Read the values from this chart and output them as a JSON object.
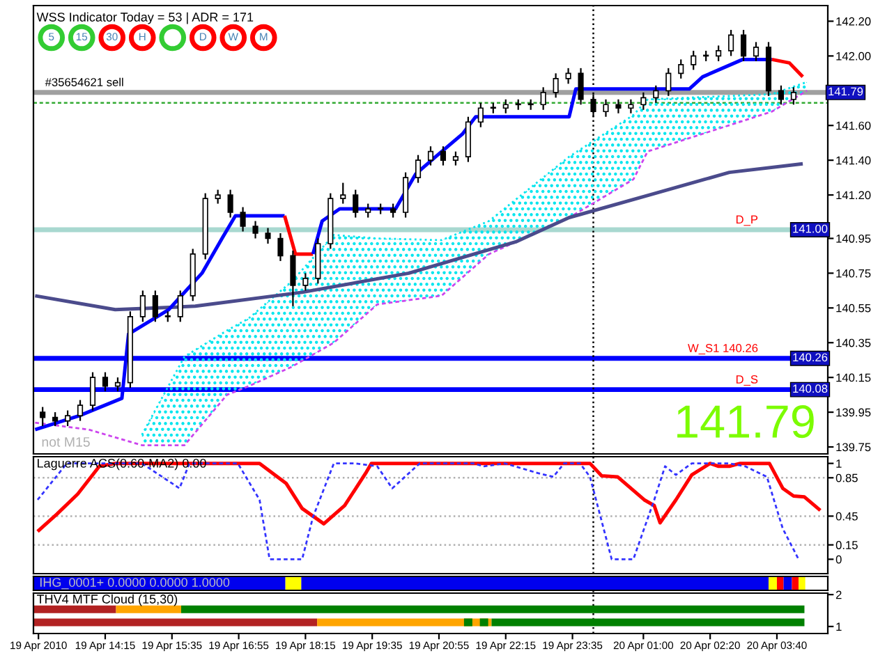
{
  "chart_data": [
    {
      "type": "candlestick",
      "title": "WSS Indicator Today = 53 | ADR = 171",
      "color": "#000000",
      "x": [
        "2010-04-19T13:00",
        "2010-04-19T13:15",
        "2010-04-19T13:30",
        "2010-04-19T13:45",
        "2010-04-19T14:00",
        "2010-04-19T14:15",
        "2010-04-19T14:30",
        "2010-04-19T14:45",
        "2010-04-19T15:00",
        "2010-04-19T15:15",
        "2010-04-19T15:30",
        "2010-04-19T15:45",
        "2010-04-19T16:00",
        "2010-04-19T16:15",
        "2010-04-19T16:30",
        "2010-04-19T16:45",
        "2010-04-19T17:00",
        "2010-04-19T17:15",
        "2010-04-19T17:30",
        "2010-04-19T17:45",
        "2010-04-19T18:00",
        "2010-04-19T18:15",
        "2010-04-19T18:30",
        "2010-04-19T18:45",
        "2010-04-19T19:00",
        "2010-04-19T19:15",
        "2010-04-19T19:30",
        "2010-04-19T19:45",
        "2010-04-19T20:00",
        "2010-04-19T20:15",
        "2010-04-19T20:30",
        "2010-04-19T20:45",
        "2010-04-19T21:00",
        "2010-04-19T21:15",
        "2010-04-19T21:30",
        "2010-04-19T21:45",
        "2010-04-19T22:00",
        "2010-04-19T22:15",
        "2010-04-19T22:30",
        "2010-04-19T22:45",
        "2010-04-19T23:00",
        "2010-04-19T23:15",
        "2010-04-19T23:30",
        "2010-04-19T23:45",
        "2010-04-20T00:00",
        "2010-04-20T00:15",
        "2010-04-20T00:30",
        "2010-04-20T00:45",
        "2010-04-20T01:00",
        "2010-04-20T01:15",
        "2010-04-20T01:30",
        "2010-04-20T01:45",
        "2010-04-20T02:00",
        "2010-04-20T02:15",
        "2010-04-20T02:30",
        "2010-04-20T02:45",
        "2010-04-20T03:00",
        "2010-04-20T03:15",
        "2010-04-20T03:30",
        "2010-04-20T03:45",
        "2010-04-20T04:00"
      ],
      "ohlc": [
        [
          139.95,
          139.98,
          139.87,
          139.92
        ],
        [
          139.92,
          139.95,
          139.87,
          139.9
        ],
        [
          139.9,
          139.96,
          139.87,
          139.93
        ],
        [
          139.93,
          140.02,
          139.9,
          139.99
        ],
        [
          139.99,
          140.18,
          139.96,
          140.15
        ],
        [
          140.15,
          140.18,
          140.07,
          140.1
        ],
        [
          140.1,
          140.15,
          140.07,
          140.12
        ],
        [
          140.12,
          140.53,
          140.09,
          140.5
        ],
        [
          140.5,
          140.65,
          140.47,
          140.62
        ],
        [
          140.62,
          140.65,
          140.47,
          140.5
        ],
        [
          140.5,
          140.53,
          140.47,
          140.5
        ],
        [
          140.5,
          140.65,
          140.47,
          140.62
        ],
        [
          140.62,
          140.89,
          140.59,
          140.86
        ],
        [
          140.86,
          141.21,
          140.83,
          141.18
        ],
        [
          141.18,
          141.23,
          141.15,
          141.2
        ],
        [
          141.2,
          141.23,
          141.07,
          141.1
        ],
        [
          141.1,
          141.13,
          140.99,
          141.02
        ],
        [
          141.02,
          141.05,
          140.95,
          140.98
        ],
        [
          140.98,
          141.01,
          140.92,
          140.95
        ],
        [
          140.95,
          140.98,
          140.82,
          140.85
        ],
        [
          140.85,
          140.88,
          140.56,
          140.68
        ],
        [
          140.68,
          140.75,
          140.65,
          140.72
        ],
        [
          140.72,
          140.95,
          140.69,
          140.92
        ],
        [
          140.92,
          141.21,
          140.89,
          141.18
        ],
        [
          141.18,
          141.27,
          141.15,
          141.2
        ],
        [
          141.2,
          141.23,
          141.07,
          141.1
        ],
        [
          141.1,
          141.15,
          141.07,
          141.12
        ],
        [
          141.12,
          141.15,
          141.09,
          141.12
        ],
        [
          141.12,
          141.15,
          141.07,
          141.1
        ],
        [
          141.1,
          141.33,
          141.07,
          141.3
        ],
        [
          141.3,
          141.43,
          141.27,
          141.4
        ],
        [
          141.4,
          141.48,
          141.37,
          141.45
        ],
        [
          141.45,
          141.48,
          141.37,
          141.4
        ],
        [
          141.4,
          141.45,
          141.37,
          141.42
        ],
        [
          141.42,
          141.65,
          141.39,
          141.62
        ],
        [
          141.62,
          141.73,
          141.59,
          141.7
        ],
        [
          141.7,
          141.73,
          141.67,
          141.7
        ],
        [
          141.7,
          141.75,
          141.67,
          141.72
        ],
        [
          141.72,
          141.75,
          141.69,
          141.72
        ],
        [
          141.72,
          141.75,
          141.69,
          141.72
        ],
        [
          141.72,
          141.82,
          141.69,
          141.79
        ],
        [
          141.79,
          141.9,
          141.76,
          141.87
        ],
        [
          141.87,
          141.93,
          141.84,
          141.9
        ],
        [
          141.9,
          141.93,
          141.72,
          141.75
        ],
        [
          141.75,
          141.78,
          141.65,
          141.68
        ],
        [
          141.68,
          141.75,
          141.65,
          141.72
        ],
        [
          141.72,
          141.75,
          141.67,
          141.7
        ],
        [
          141.7,
          141.75,
          141.67,
          141.72
        ],
        [
          141.72,
          141.79,
          141.69,
          141.76
        ],
        [
          141.76,
          141.83,
          141.73,
          141.8
        ],
        [
          141.8,
          141.93,
          141.77,
          141.9
        ],
        [
          141.9,
          141.98,
          141.87,
          141.95
        ],
        [
          141.95,
          142.03,
          141.92,
          142.0
        ],
        [
          142.0,
          142.03,
          141.97,
          142.0
        ],
        [
          142.0,
          142.06,
          141.97,
          142.03
        ],
        [
          142.03,
          142.15,
          142.0,
          142.12
        ],
        [
          142.12,
          142.15,
          141.97,
          142.0
        ],
        [
          142.0,
          142.08,
          141.97,
          142.05
        ],
        [
          142.05,
          142.08,
          141.77,
          141.8
        ],
        [
          141.8,
          141.83,
          141.72,
          141.75
        ],
        [
          141.75,
          141.82,
          141.72,
          141.79
        ]
      ],
      "series": [
        {
          "type": "line",
          "color": "#00e5ee",
          "line_style": "dotted",
          "x": [
            "2010-04-19T14:59",
            "2010-04-19T15:50",
            "2010-04-19T16:41",
            "2010-04-19T17:07",
            "2010-04-19T17:58",
            "2010-04-19T18:49",
            "2010-04-19T19:41",
            "2010-04-19T20:58",
            "2010-04-19T21:55",
            "2010-04-19T23:31",
            "2010-04-20T00:48",
            "2010-04-20T01:05",
            "2010-04-20T03:34",
            "2010-04-20T04:16"
          ],
          "values": [
            139.82,
            140.27,
            140.42,
            140.49,
            140.7,
            140.97,
            140.95,
            140.94,
            141.05,
            141.42,
            141.66,
            141.75,
            141.78,
            141.85
          ],
          "lower": [
            139.76,
            139.76,
            140.05,
            140.1,
            140.21,
            140.35,
            140.57,
            140.62,
            140.86,
            141.07,
            141.29,
            141.45,
            141.68,
            141.8
          ],
          "upper": [
            139.82,
            140.27,
            140.42,
            140.49,
            140.7,
            140.97,
            140.95,
            140.94,
            141.05,
            141.42,
            141.66,
            141.75,
            141.78,
            141.85
          ]
        },
        {
          "type": "line",
          "color": "#cc44ee",
          "line_style": "dashed",
          "x": [
            "2010-04-19T12:51",
            "2010-04-19T13:55",
            "2010-04-19T14:59",
            "2010-04-19T15:50",
            "2010-04-19T16:41",
            "2010-04-19T17:07",
            "2010-04-19T17:58",
            "2010-04-19T18:49",
            "2010-04-19T19:41",
            "2010-04-19T20:58",
            "2010-04-19T21:55",
            "2010-04-19T23:31",
            "2010-04-20T00:48",
            "2010-04-20T01:05",
            "2010-04-20T03:34",
            "2010-04-20T04:16"
          ],
          "values": [
            139.89,
            139.85,
            139.76,
            139.76,
            140.05,
            140.1,
            140.21,
            140.35,
            140.57,
            140.62,
            140.86,
            141.07,
            141.29,
            141.45,
            141.68,
            141.8
          ]
        },
        {
          "type": "line",
          "color": "#4b4b8c",
          "x": [
            "2010-04-19T12:51",
            "2010-04-19T14:27",
            "2010-04-19T16:03",
            "2010-04-19T18:11",
            "2010-04-19T20:19",
            "2010-04-19T22:27",
            "2010-04-19T23:31",
            "2010-04-20T01:07",
            "2010-04-20T02:43",
            "2010-04-20T04:11"
          ],
          "values": [
            140.62,
            140.54,
            140.56,
            140.64,
            140.75,
            140.93,
            141.07,
            141.2,
            141.33,
            141.38
          ]
        },
        {
          "type": "line",
          "color": "#0000ff",
          "x": [
            "2010-04-19T12:51",
            "2010-04-19T13:44",
            "2010-04-19T14:35",
            "2010-04-19T14:43",
            "2010-04-19T15:31",
            "2010-04-19T16:11",
            "2010-04-19T16:35",
            "2010-04-19T16:51",
            "2010-04-19T17:50"
          ],
          "values": [
            139.85,
            139.93,
            140.03,
            140.4,
            140.54,
            140.75,
            140.95,
            141.08,
            141.08
          ]
        },
        {
          "type": "line",
          "color": "#ff0000",
          "x": [
            "2010-04-19T17:50",
            "2010-04-19T18:03",
            "2010-04-19T18:24"
          ],
          "values": [
            141.08,
            140.86,
            140.86
          ]
        },
        {
          "type": "line",
          "color": "#0000ff",
          "x": [
            "2010-04-19T18:24",
            "2010-04-19T18:35",
            "2010-04-19T18:56",
            "2010-04-19T20:03",
            "2010-04-19T20:27",
            "2010-04-19T20:51",
            "2010-04-19T21:23",
            "2010-04-19T21:39",
            "2010-04-19T23:31",
            "2010-04-19T23:39",
            "2010-04-20T01:55",
            "2010-04-20T02:11",
            "2010-04-20T02:59",
            "2010-04-20T03:34"
          ],
          "values": [
            140.86,
            141.05,
            141.12,
            141.12,
            141.32,
            141.42,
            141.55,
            141.65,
            141.65,
            141.81,
            141.81,
            141.88,
            141.98,
            141.98
          ]
        },
        {
          "type": "line",
          "color": "#ff0000",
          "x": [
            "2010-04-20T03:34",
            "2010-04-20T03:55",
            "2010-04-20T04:11"
          ],
          "values": [
            141.98,
            141.96,
            141.88
          ]
        }
      ],
      "ref_lines": [
        {
          "axis": "y",
          "value": 141.79,
          "label": "#35654621 sell",
          "color": "#a0a0a0"
        },
        {
          "axis": "y",
          "value": 141.73,
          "color": "#33aa33",
          "line_style": "dashed"
        },
        {
          "axis": "y",
          "value": 141.0,
          "label": "D_P",
          "color": "#a8d8d0"
        },
        {
          "axis": "y",
          "value": 140.26,
          "label": "W_S1 140.26",
          "color": "#0000ff"
        },
        {
          "axis": "y",
          "value": 140.08,
          "label": "D_S",
          "color": "#0000ff"
        },
        {
          "axis": "x",
          "value": "2010-04-20T00:00",
          "color": "#000000",
          "line_style": "dotted"
        }
      ],
      "annotations": [
        {
          "text": "141.79",
          "x": "2010-04-20T04:41",
          "y": 141.79
        },
        {
          "text": "141.00",
          "x": "2010-04-20T04:41",
          "y": 141.0
        },
        {
          "text": "140.26",
          "x": "2010-04-20T04:41",
          "y": 140.26
        },
        {
          "text": "140.08",
          "x": "2010-04-20T04:41",
          "y": 140.08
        },
        "141.79",
        "not M15"
      ],
      "xlim": [
        "2010-04-19T12:49",
        "2010-04-20T04:41"
      ],
      "ylim": [
        139.71,
        142.29
      ],
      "yticks": [
        {
          "value": 142.2,
          "label": "142.20"
        },
        {
          "value": 142.0,
          "label": "142.00"
        },
        {
          "value": 141.6,
          "label": "141.60"
        },
        {
          "value": 141.4,
          "label": "141.40"
        },
        {
          "value": 141.2,
          "label": "141.20"
        },
        140.95,
        140.75,
        140.55,
        140.35,
        140.15,
        139.95,
        139.75
      ],
      "tick_labels": "y"
    },
    {
      "type": "other",
      "categories": [
        "5",
        "15",
        "30",
        "H",
        null,
        "D",
        "W",
        "M"
      ],
      "colors": [
        "#33cc33",
        "#33cc33",
        "#ff0000",
        "#ff0000",
        "#33cc33",
        "#ff0000",
        "#ff0000",
        "#ff0000"
      ]
    },
    {
      "type": "line",
      "title": "Laguerre ACS(0.60-MA2) 0.00",
      "series": [
        {
          "color": "#ff0000",
          "x": [
            "2010-04-19T12:54",
            "2010-04-19T13:17",
            "2010-04-19T13:42",
            "2010-04-19T14:08",
            "2010-04-19T14:27",
            "2010-04-19T17:20",
            "2010-04-19T17:52",
            "2010-04-19T18:11",
            "2010-04-19T18:37",
            "2010-04-19T19:02",
            "2010-04-19T19:28",
            "2010-04-19T19:34",
            "2010-04-19T23:56",
            "2010-04-20T00:10",
            "2010-04-20T00:29",
            "2010-04-20T01:01",
            "2010-04-20T01:13",
            "2010-04-20T01:20",
            "2010-04-20T01:39",
            "2010-04-20T01:58",
            "2010-04-20T02:20",
            "2010-04-20T02:30",
            "2010-04-20T02:43",
            "2010-04-20T02:56",
            "2010-04-20T03:31",
            "2010-04-20T03:47",
            "2010-04-20T04:00",
            "2010-04-20T04:13",
            "2010-04-20T04:32"
          ],
          "values": [
            0.29,
            0.47,
            0.68,
            0.97,
            1,
            1,
            0.79,
            0.53,
            0.37,
            0.56,
            0.91,
            1,
            1,
            0.87,
            0.86,
            0.62,
            0.56,
            0.38,
            0.62,
            0.88,
            1,
            0.97,
            0.97,
            1,
            1,
            0.74,
            0.66,
            0.65,
            0.51
          ]
        },
        {
          "color": "#3333ff",
          "line_style": "dashed",
          "x": [
            "2010-04-19T12:54",
            "2010-04-19T13:29",
            "2010-04-19T14:59",
            "2010-04-19T15:25",
            "2010-04-19T15:44",
            "2010-04-19T15:56",
            "2010-04-19T16:54",
            "2010-04-19T17:20",
            "2010-04-19T17:32",
            "2010-04-19T18:11",
            "2010-04-19T18:24",
            "2010-04-19T18:49",
            "2010-04-19T19:15",
            "2010-04-19T19:41",
            "2010-04-19T19:59",
            "2010-04-19T20:32",
            "2010-04-19T21:36",
            "2010-04-19T21:49",
            "2010-04-19T22:14",
            "2010-04-19T22:53",
            "2010-04-19T23:12",
            "2010-04-19T23:25",
            "2010-04-19T23:44",
            "2010-04-19T23:56",
            "2010-04-20T00:22",
            "2010-04-20T00:48",
            "2010-04-20T01:13",
            "2010-04-20T01:26",
            "2010-04-20T01:39",
            "2010-04-20T01:58",
            "2010-04-20T02:43",
            "2010-04-20T03:02",
            "2010-04-20T03:28",
            "2010-04-20T03:47",
            "2010-04-20T04:06"
          ],
          "values": [
            0.62,
            1,
            1,
            0.85,
            0.74,
            1,
            1,
            0.62,
            0,
            0,
            0.44,
            1,
            1,
            0.97,
            0.74,
            1,
            1,
            0.97,
            1,
            0.9,
            0.86,
            1,
            1,
            0.86,
            0,
            0,
            0.62,
            0.97,
            0.88,
            1,
            1,
            0.97,
            0.86,
            0.32,
            0
          ]
        }
      ],
      "ref_lines": [
        {
          "axis": "y",
          "value": 0.85,
          "color": "#b0b0b0",
          "line_style": "dotted"
        },
        {
          "axis": "y",
          "value": 0.45,
          "color": "#b0b0b0",
          "line_style": "dotted"
        },
        {
          "axis": "y",
          "value": 0.15,
          "color": "#b0b0b0",
          "line_style": "dotted"
        },
        {
          "axis": "x",
          "value": "2010-04-20T00:00",
          "color": "#000000",
          "line_style": "dotted"
        }
      ],
      "xlim": [
        "2010-04-19T12:49",
        "2010-04-20T04:41"
      ],
      "ylim": [
        -0.15,
        1.07
      ],
      "yticks": [
        1,
        0.85,
        0.45,
        0.15,
        0
      ],
      "tick_labels": "y"
    },
    {
      "type": "line",
      "title": "THV4 MTF Cloud (15,30)",
      "annotations": [
        "IHG_0001+ 0.0000 0.0000 1.0000"
      ],
      "series": [
        {
          "color": "#0000ee",
          "x": [
            "2010-04-19T12:49",
            "2010-04-19T17:51"
          ],
          "values": [
            2.35,
            2.35
          ]
        },
        {
          "color": "#ffff00",
          "x": [
            "2010-04-19T17:51",
            "2010-04-19T18:10"
          ],
          "values": [
            2.35,
            2.35
          ]
        },
        {
          "color": "#0000ee",
          "x": [
            "2010-04-19T18:10",
            "2010-04-20T03:30"
          ],
          "values": [
            2.35,
            2.35
          ]
        },
        {
          "color": "#ffff00",
          "x": [
            "2010-04-20T03:30",
            "2010-04-20T03:40"
          ],
          "values": [
            2.35,
            2.35
          ]
        },
        {
          "color": "#ff0000",
          "x": [
            "2010-04-20T03:40",
            "2010-04-20T03:48"
          ],
          "values": [
            2.35,
            2.35
          ]
        },
        {
          "color": "#0000ee",
          "x": [
            "2010-04-20T03:48",
            "2010-04-20T03:58"
          ],
          "values": [
            2.35,
            2.35
          ]
        },
        {
          "color": "#ff0000",
          "x": [
            "2010-04-20T03:58",
            "2010-04-20T04:06"
          ],
          "values": [
            2.35,
            2.35
          ]
        },
        {
          "color": "#ffff00",
          "x": [
            "2010-04-20T04:06",
            "2010-04-20T04:14"
          ],
          "values": [
            2.35,
            2.35
          ]
        },
        {
          "color": "#b22222",
          "x": [
            "2010-04-19T12:49",
            "2010-04-19T14:28"
          ],
          "values": [
            1.54,
            1.54
          ]
        },
        {
          "color": "#ffa500",
          "x": [
            "2010-04-19T14:28",
            "2010-04-19T15:46"
          ],
          "values": [
            1.54,
            1.54
          ]
        },
        {
          "color": "#008000",
          "x": [
            "2010-04-19T15:46",
            "2010-04-20T04:13"
          ],
          "values": [
            1.54,
            1.54
          ]
        },
        {
          "color": "#b22222",
          "x": [
            "2010-04-19T12:49",
            "2010-04-19T18:29"
          ],
          "values": [
            1.13,
            1.13
          ]
        },
        {
          "color": "#ffa500",
          "x": [
            "2010-04-19T18:29",
            "2010-04-19T21:58"
          ],
          "values": [
            1.13,
            1.13
          ]
        },
        {
          "color": "#008000",
          "x": [
            "2010-04-19T21:25",
            "2010-04-19T21:35"
          ],
          "values": [
            1.13,
            1.13
          ]
        },
        {
          "color": "#008000",
          "x": [
            "2010-04-19T21:44",
            "2010-04-19T21:54"
          ],
          "values": [
            1.13,
            1.13
          ]
        },
        {
          "color": "#008000",
          "x": [
            "2010-04-19T21:58",
            "2010-04-20T04:13"
          ],
          "values": [
            1.13,
            1.13
          ]
        }
      ],
      "ref_lines": [
        {
          "axis": "x",
          "value": "2010-04-20T00:00",
          "color": "#000000",
          "line_style": "dotted"
        }
      ],
      "xlim": [
        "2010-04-19T12:49",
        "2010-04-20T04:41"
      ],
      "ylim": [
        0.78,
        2.57
      ],
      "yticks": [
        1,
        2
      ],
      "xticks": [
        {
          "value": "2010-04-19T12:55",
          "label": "19 Apr 2010"
        },
        {
          "value": "2010-04-19T14:15",
          "label": "19 Apr 14:15"
        },
        {
          "value": "2010-04-19T15:35",
          "label": "19 Apr 15:35"
        },
        {
          "value": "2010-04-19T16:55",
          "label": "19 Apr 16:55"
        },
        {
          "value": "2010-04-19T18:15",
          "label": "19 Apr 18:15"
        },
        {
          "value": "2010-04-19T19:35",
          "label": "19 Apr 19:35"
        },
        {
          "value": "2010-04-19T20:55",
          "label": "19 Apr 20:55"
        },
        {
          "value": "2010-04-19T22:15",
          "label": "19 Apr 22:15"
        },
        {
          "value": "2010-04-19T23:35",
          "label": "19 Apr 23:35"
        },
        {
          "value": "2010-04-20T01:00",
          "label": "20 Apr 01:00"
        },
        {
          "value": "2010-04-20T02:20",
          "label": "20 Apr 02:20"
        },
        {
          "value": "2010-04-20T03:40",
          "label": "20 Apr 03:40"
        }
      ]
    }
  ]
}
